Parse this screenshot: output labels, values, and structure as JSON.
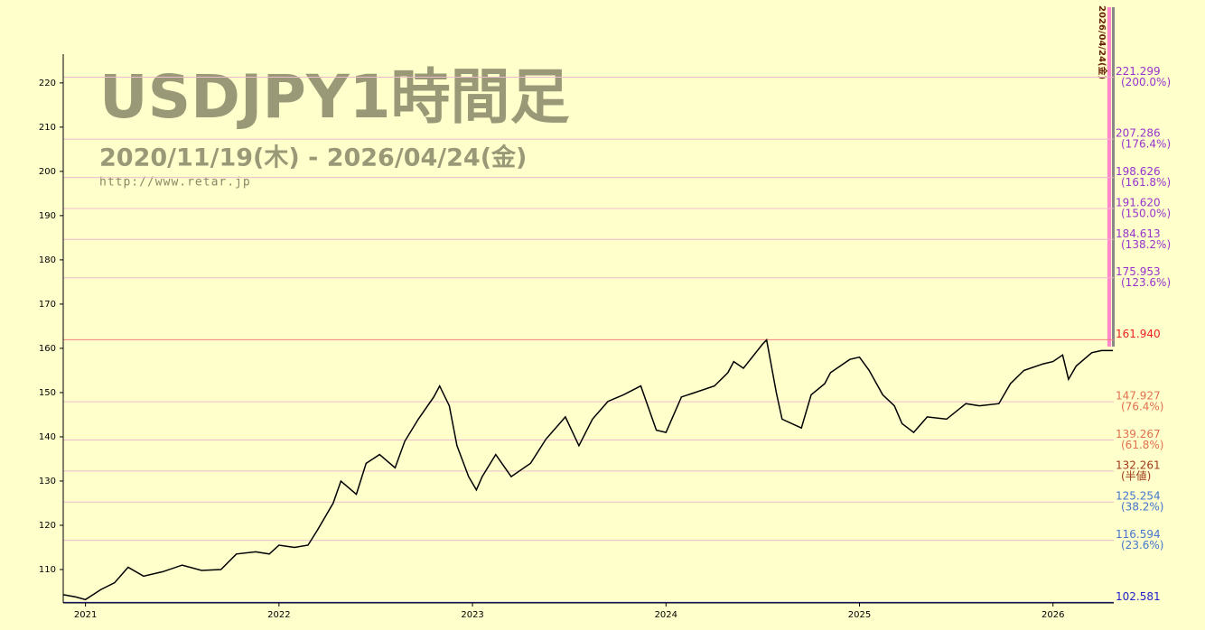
{
  "chart_data": {
    "type": "line",
    "title": "USDJPY1時間足",
    "subtitle": "2020/11/19(木) - 2026/04/24(金)",
    "url": "http://www.retar.jp",
    "side_note": "2026/04/24(金)",
    "xlim": [
      2020.885,
      2026.314
    ],
    "xticks": [
      2021,
      2022,
      2023,
      2024,
      2025,
      2026
    ],
    "ylim": [
      102.45,
      226.5
    ],
    "yticks": [
      110,
      120,
      130,
      140,
      150,
      160,
      170,
      180,
      190,
      200,
      210,
      220
    ],
    "series": [
      {
        "color": "#000000",
        "x": [
          2020.885,
          2020.95,
          2021.0,
          2021.08,
          2021.15,
          2021.22,
          2021.3,
          2021.4,
          2021.5,
          2021.6,
          2021.7,
          2021.78,
          2021.88,
          2021.95,
          2022.0,
          2022.08,
          2022.15,
          2022.2,
          2022.28,
          2022.32,
          2022.4,
          2022.45,
          2022.52,
          2022.6,
          2022.65,
          2022.72,
          2022.8,
          2022.83,
          2022.88,
          2022.92,
          2022.98,
          2023.02,
          2023.05,
          2023.12,
          2023.2,
          2023.3,
          2023.38,
          2023.45,
          2023.48,
          2023.55,
          2023.62,
          2023.7,
          2023.78,
          2023.87,
          2023.95,
          2024.0,
          2024.08,
          2024.15,
          2024.25,
          2024.32,
          2024.35,
          2024.4,
          2024.5,
          2024.52,
          2024.57,
          2024.6,
          2024.7,
          2024.75,
          2024.82,
          2024.85,
          2024.95,
          2025.0,
          2025.05,
          2025.12,
          2025.18,
          2025.22,
          2025.28,
          2025.35,
          2025.45,
          2025.55,
          2025.62,
          2025.72,
          2025.78,
          2025.85,
          2025.95,
          2026.0,
          2026.05,
          2026.08,
          2026.12,
          2026.2,
          2026.25,
          2026.31
        ],
        "values": [
          104.3,
          103.8,
          103.2,
          105.5,
          107,
          110.5,
          108.5,
          109.5,
          111,
          109.8,
          110,
          113.5,
          114,
          113.5,
          115.5,
          115,
          115.5,
          119,
          125,
          130,
          127,
          134,
          136,
          133,
          139,
          144,
          149,
          151.5,
          147,
          138,
          131,
          128,
          131,
          136,
          131,
          134,
          139.5,
          143,
          144.5,
          138,
          144,
          148,
          149.5,
          151.5,
          141.5,
          141,
          149,
          150,
          151.5,
          154.5,
          157,
          155.5,
          161,
          161.9,
          150,
          144,
          142,
          149.5,
          152,
          154.5,
          157.5,
          158,
          155,
          149.5,
          147,
          143,
          141,
          144.5,
          144,
          147.5,
          147,
          147.5,
          152,
          155,
          156.5,
          157,
          158.5,
          153,
          156,
          159,
          159.5,
          159.5
        ]
      }
    ],
    "levels": [
      {
        "value": 221.299,
        "label": "221.299",
        "note": "(200.0%)",
        "color": "#9933cc"
      },
      {
        "value": 207.286,
        "label": "207.286",
        "note": "(176.4%)",
        "color": "#9933cc"
      },
      {
        "value": 198.626,
        "label": "198.626",
        "note": "(161.8%)",
        "color": "#9933cc"
      },
      {
        "value": 191.62,
        "label": "191.620",
        "note": "(150.0%)",
        "color": "#9933cc"
      },
      {
        "value": 184.613,
        "label": "184.613",
        "note": "(138.2%)",
        "color": "#9933cc"
      },
      {
        "value": 175.953,
        "label": "175.953",
        "note": "(123.6%)",
        "color": "#9933cc"
      },
      {
        "value": 161.94,
        "label": "161.940",
        "color": "#ee2222"
      },
      {
        "value": 147.927,
        "label": "147.927",
        "note": "(76.4%)",
        "color": "#e07050"
      },
      {
        "value": 139.267,
        "label": "139.267",
        "note": "(61.8%)",
        "color": "#e07050"
      },
      {
        "value": 132.261,
        "label": "132.261",
        "note": "(半値)",
        "color": "#a03818"
      },
      {
        "value": 125.254,
        "label": "125.254",
        "note": "(38.2%)",
        "color": "#4477cc"
      },
      {
        "value": 116.594,
        "label": "116.594",
        "note": "(23.6%)",
        "color": "#4477cc"
      },
      {
        "value": 102.581,
        "label": "102.581",
        "color": "#2222cc"
      }
    ]
  }
}
